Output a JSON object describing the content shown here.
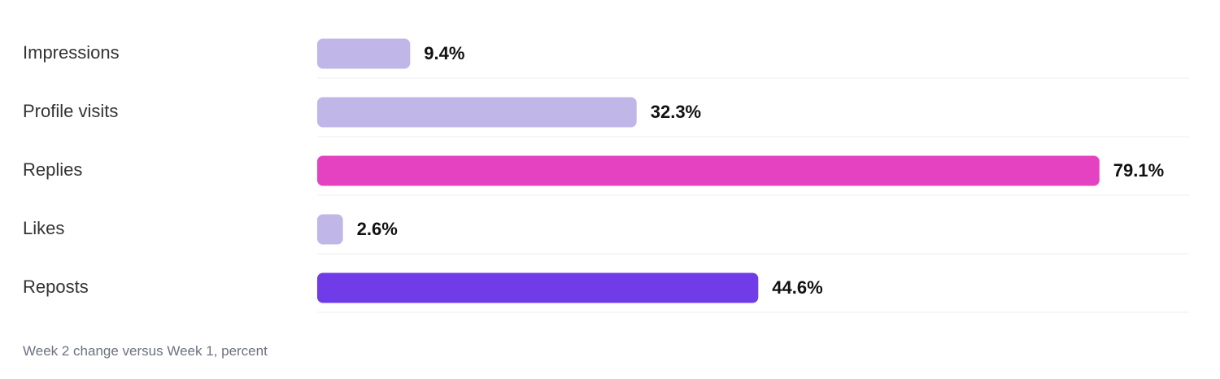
{
  "chart_data": {
    "type": "bar",
    "orientation": "horizontal",
    "categories": [
      "Impressions",
      "Profile visits",
      "Replies",
      "Likes",
      "Reposts"
    ],
    "values": [
      9.4,
      32.3,
      79.1,
      2.6,
      44.6
    ],
    "value_labels": [
      "9.4%",
      "32.3%",
      "79.1%",
      "2.6%",
      "44.6%"
    ],
    "bar_colors": [
      "#c0b7e8",
      "#c0b7e8",
      "#e442c0",
      "#c0b7e8",
      "#6f3ce8"
    ],
    "xlim": [
      0,
      88
    ],
    "grid": false,
    "legend": "none",
    "title": "",
    "xlabel": "",
    "ylabel": "",
    "caption": "Week 2 change versus Week 1, percent"
  }
}
